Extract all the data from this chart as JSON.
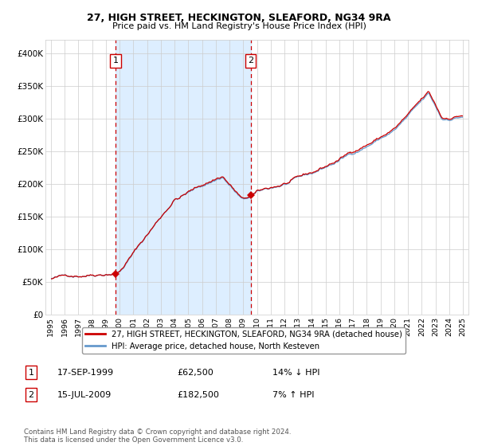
{
  "title1": "27, HIGH STREET, HECKINGTON, SLEAFORD, NG34 9RA",
  "title2": "Price paid vs. HM Land Registry's House Price Index (HPI)",
  "ylim": [
    0,
    420000
  ],
  "yticks": [
    0,
    50000,
    100000,
    150000,
    200000,
    250000,
    300000,
    350000,
    400000
  ],
  "ytick_labels": [
    "£0",
    "£50K",
    "£100K",
    "£150K",
    "£200K",
    "£250K",
    "£300K",
    "£350K",
    "£400K"
  ],
  "sale1_date": "17-SEP-1999",
  "sale1_price": 62500,
  "sale1_year": 1999.71,
  "sale2_date": "15-JUL-2009",
  "sale2_price": 182500,
  "sale2_year": 2009.54,
  "legend_property": "27, HIGH STREET, HECKINGTON, SLEAFORD, NG34 9RA (detached house)",
  "legend_hpi": "HPI: Average price, detached house, North Kesteven",
  "sale1_pct": "14% ↓ HPI",
  "sale2_pct": "7% ↑ HPI",
  "footer": "Contains HM Land Registry data © Crown copyright and database right 2024.\nThis data is licensed under the Open Government Licence v3.0.",
  "hpi_color": "#6699cc",
  "property_color": "#cc0000",
  "shade_color": "#ddeeff",
  "vline_color": "#cc0000",
  "background_color": "#ffffff",
  "grid_color": "#cccccc"
}
